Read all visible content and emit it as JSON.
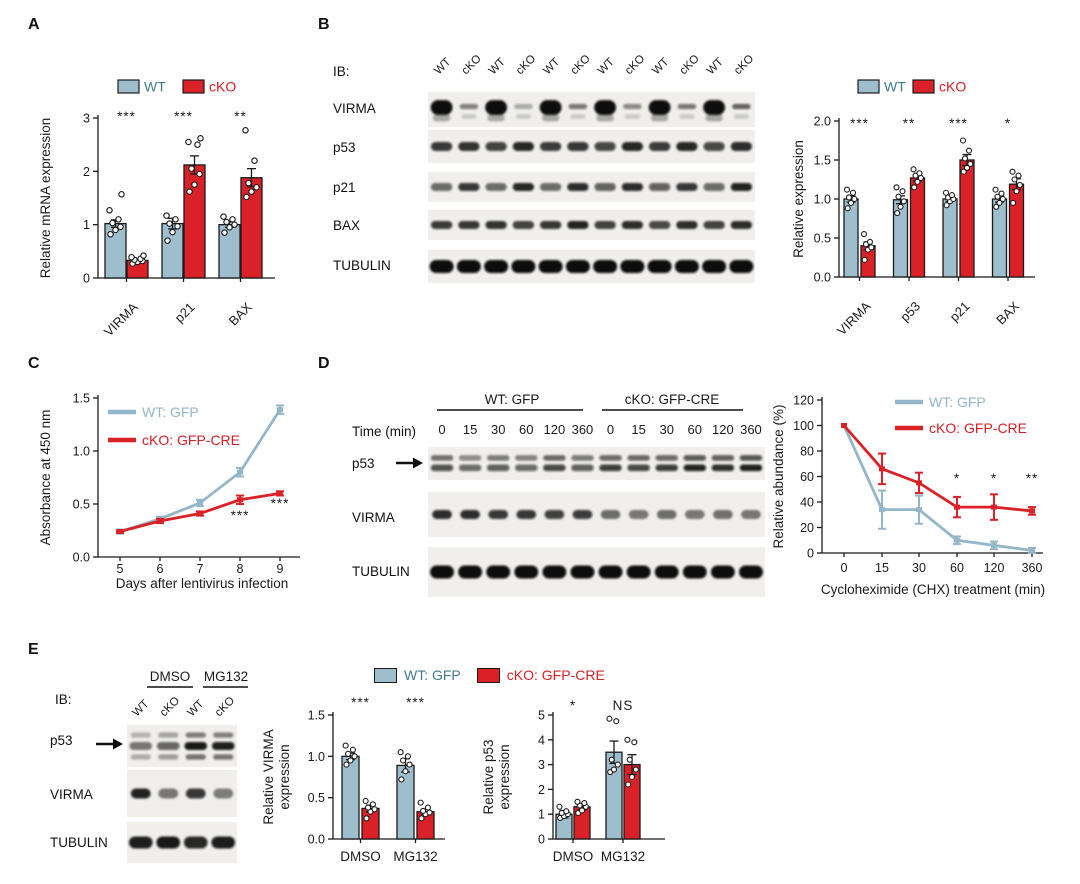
{
  "colors": {
    "wt": "#9fbecd",
    "cko": "#da2128",
    "wtText": "#41798e",
    "ckoText": "#d22027",
    "wtLine": "#93b6c8",
    "ckoLine": "#da2128",
    "ink": "#1a1a1a",
    "stripBg": "#f0efec"
  },
  "panels": {
    "a": {
      "label": "A"
    },
    "b": {
      "label": "B",
      "ib": "IB:",
      "lanes": [
        "WT",
        "cKO",
        "WT",
        "cKO",
        "WT",
        "cKO",
        "WT",
        "cKO",
        "WT",
        "cKO",
        "WT",
        "cKO"
      ],
      "rows": [
        {
          "name": "VIRMA",
          "style": "blob",
          "bands": [
            1,
            0.35,
            1,
            0.22,
            1,
            0.38,
            1,
            0.32,
            1,
            0.38,
            1,
            0.45
          ]
        },
        {
          "name": "p53",
          "style": "single",
          "bands": [
            0.8,
            0.82,
            0.75,
            0.88,
            0.78,
            0.8,
            0.72,
            0.88,
            0.78,
            0.88,
            0.72,
            0.85
          ]
        },
        {
          "name": "p21",
          "style": "single",
          "bands": [
            0.55,
            0.8,
            0.5,
            0.88,
            0.5,
            0.85,
            0.6,
            0.85,
            0.6,
            0.8,
            0.55,
            0.9
          ]
        },
        {
          "name": "BAX",
          "style": "single",
          "bands": [
            0.78,
            0.8,
            0.82,
            0.75,
            0.8,
            0.9,
            0.75,
            0.85,
            0.72,
            0.85,
            0.75,
            0.85
          ]
        },
        {
          "name": "TUBULIN",
          "style": "single",
          "bands": [
            1,
            1,
            1,
            1,
            1,
            1,
            1,
            1,
            1,
            1,
            1,
            1
          ]
        }
      ]
    },
    "c": {
      "label": "C"
    },
    "d": {
      "label": "D",
      "group_labels": [
        "WT: GFP",
        "cKO: GFP-CRE"
      ],
      "time_label": "Time (min)",
      "time_points": [
        "0",
        "15",
        "30",
        "60",
        "120",
        "360"
      ],
      "rows": [
        {
          "name": "p53",
          "style": "doublet",
          "bands": [
            0.7,
            0.55,
            0.65,
            0.6,
            0.75,
            0.65,
            0.8,
            0.75,
            0.8,
            0.9,
            0.85,
            0.92
          ]
        },
        {
          "name": "VIRMA",
          "style": "single",
          "bands": [
            0.85,
            0.85,
            0.8,
            0.8,
            0.75,
            0.78,
            0.5,
            0.45,
            0.5,
            0.45,
            0.48,
            0.45
          ]
        },
        {
          "name": "TUBULIN",
          "style": "single",
          "bands": [
            1,
            1,
            1,
            1,
            1,
            1,
            1,
            1,
            1,
            1,
            1,
            1
          ]
        }
      ]
    },
    "e": {
      "label": "E",
      "ib": "IB:",
      "treatments": [
        "DMSO",
        "MG132"
      ],
      "lanes": [
        "WT",
        "cKO",
        "WT",
        "cKO"
      ],
      "legend": [
        "WT: GFP",
        "cKO: GFP-CRE"
      ],
      "rows": [
        {
          "name": "p53",
          "style": "triplet",
          "bands": [
            0.5,
            0.62,
            0.95,
            0.92
          ]
        },
        {
          "name": "VIRMA",
          "style": "single",
          "bands": [
            0.9,
            0.45,
            0.8,
            0.42
          ]
        },
        {
          "name": "TUBULIN",
          "style": "single",
          "bands": [
            0.92,
            0.95,
            0.88,
            0.92
          ]
        }
      ]
    }
  },
  "chart_data": [
    {
      "id": "A",
      "type": "bar",
      "ylabel": "Relative mRNA expression",
      "categories": [
        "VIRMA",
        "p21",
        "BAX"
      ],
      "ylim": [
        0,
        3
      ],
      "yticks": [
        0,
        1,
        2,
        3
      ],
      "ytick_labels": [
        "0",
        "1",
        "2",
        "3"
      ],
      "legend_position": "top",
      "significance": [
        "***",
        "***",
        "**"
      ],
      "series": [
        {
          "name": "WT",
          "values": [
            1.02,
            1.02,
            1.0
          ],
          "err": [
            0.07,
            0.1,
            0.05
          ],
          "dots": [
            [
              0.82,
              0.9,
              0.96,
              1.03,
              1.1,
              1.27,
              1.57
            ],
            [
              0.7,
              0.86,
              0.97,
              1.02,
              1.1,
              1.17
            ],
            [
              0.85,
              0.95,
              1.0,
              1.05,
              1.1,
              1.15
            ]
          ]
        },
        {
          "name": "cKO",
          "values": [
            0.33,
            2.12,
            1.88
          ],
          "err": [
            0.03,
            0.17,
            0.17
          ],
          "dots": [
            [
              0.27,
              0.3,
              0.32,
              0.34,
              0.36,
              0.39,
              0.42
            ],
            [
              1.62,
              1.75,
              1.95,
              2.05,
              2.5,
              2.55,
              2.62
            ],
            [
              1.52,
              1.62,
              1.7,
              1.78,
              2.2,
              2.77
            ]
          ]
        }
      ]
    },
    {
      "id": "B",
      "type": "bar",
      "ylabel": "Relative expression",
      "categories": [
        "VIRMA",
        "p53",
        "p21",
        "BAX"
      ],
      "ylim": [
        0,
        2
      ],
      "yticks": [
        0,
        0.5,
        1.0,
        1.5,
        2.0
      ],
      "ytick_labels": [
        "0.0",
        "0.5",
        "1.0",
        "1.5",
        "2.0"
      ],
      "legend_position": "top",
      "significance": [
        "***",
        "**",
        "***",
        "*"
      ],
      "series": [
        {
          "name": "WT",
          "values": [
            1.0,
            0.99,
            1.0,
            1.0
          ],
          "err": [
            0.04,
            0.05,
            0.03,
            0.04
          ],
          "dots": [
            [
              0.88,
              0.95,
              1.0,
              1.02,
              1.08,
              1.12
            ],
            [
              0.82,
              0.9,
              0.97,
              1.03,
              1.1,
              1.15
            ],
            [
              0.92,
              0.97,
              1.0,
              1.02,
              1.05,
              1.08
            ],
            [
              0.9,
              0.95,
              1.0,
              1.03,
              1.07,
              1.12
            ]
          ]
        },
        {
          "name": "cKO",
          "values": [
            0.4,
            1.27,
            1.5,
            1.19
          ],
          "err": [
            0.05,
            0.04,
            0.07,
            0.07
          ],
          "dots": [
            [
              0.22,
              0.35,
              0.38,
              0.42,
              0.45,
              0.55
            ],
            [
              1.15,
              1.22,
              1.27,
              1.3,
              1.33,
              1.38
            ],
            [
              1.35,
              1.4,
              1.45,
              1.52,
              1.62,
              1.75
            ],
            [
              0.95,
              1.1,
              1.18,
              1.25,
              1.3,
              1.35
            ]
          ]
        }
      ]
    },
    {
      "id": "C",
      "type": "line",
      "ylabel": "Absorbance at 450 nm",
      "xlabel": "Days after lentivirus infection",
      "x": [
        5,
        6,
        7,
        8,
        9
      ],
      "xtick_labels": [
        "5",
        "6",
        "7",
        "8",
        "9"
      ],
      "ylim": [
        0,
        1.5
      ],
      "yticks": [
        0,
        0.5,
        1.0,
        1.5
      ],
      "ytick_labels": [
        "0.0",
        "0.5",
        "1.0",
        "1.5"
      ],
      "legend_position": "top-left-inside",
      "significance": [
        {
          "xi": 3,
          "label": "***"
        },
        {
          "xi": 4,
          "label": "***"
        }
      ],
      "series": [
        {
          "name": "WT: GFP",
          "values": [
            0.24,
            0.36,
            0.51,
            0.8,
            1.39
          ],
          "err": [
            0.02,
            0.02,
            0.03,
            0.04,
            0.04
          ]
        },
        {
          "name": "cKO: GFP-CRE",
          "values": [
            0.24,
            0.34,
            0.41,
            0.54,
            0.6
          ],
          "err": [
            0.01,
            0.02,
            0.02,
            0.04,
            0.02
          ]
        }
      ]
    },
    {
      "id": "D",
      "type": "line",
      "ylabel": "Relative abundance (%)",
      "xlabel": "Cycloheximide (CHX) treatment (min)",
      "x": [
        0,
        15,
        30,
        60,
        120,
        360
      ],
      "xtick_labels": [
        "0",
        "15",
        "30",
        "60",
        "120",
        "360"
      ],
      "ylim": [
        0,
        120
      ],
      "yticks": [
        0,
        20,
        40,
        60,
        80,
        100,
        120
      ],
      "ytick_labels": [
        "0",
        "20",
        "40",
        "60",
        "80",
        "100",
        "120"
      ],
      "legend_position": "top-right-inside",
      "significance": [
        {
          "xi": 3,
          "label": "*"
        },
        {
          "xi": 4,
          "label": "*"
        },
        {
          "xi": 5,
          "label": "**"
        }
      ],
      "series": [
        {
          "name": "WT: GFP",
          "values": [
            100,
            34,
            34,
            10,
            6,
            2
          ],
          "err": [
            0,
            15,
            11,
            3,
            3,
            2
          ]
        },
        {
          "name": "cKO: GFP-CRE",
          "values": [
            100,
            66,
            55,
            36,
            36,
            33
          ],
          "err": [
            0,
            12,
            8,
            8,
            10,
            3
          ]
        }
      ]
    },
    {
      "id": "E1",
      "type": "bar",
      "ylabel_lines": [
        "Relative VIRMA",
        "expression"
      ],
      "categories": [
        "DMSO",
        "MG132"
      ],
      "ylim": [
        0,
        1.5
      ],
      "yticks": [
        0,
        0.5,
        1.0,
        1.5
      ],
      "ytick_labels": [
        "0.0",
        "0.5",
        "1.0",
        "1.5"
      ],
      "significance": [
        "***",
        "***"
      ],
      "series": [
        {
          "name": "WT: GFP",
          "values": [
            1.0,
            0.89
          ],
          "err": [
            0.04,
            0.08
          ],
          "dots": [
            [
              0.9,
              0.95,
              1.0,
              1.03,
              1.08,
              1.13
            ],
            [
              0.72,
              0.82,
              0.9,
              0.95,
              1.0,
              1.05
            ]
          ]
        },
        {
          "name": "cKO: GFP-CRE",
          "values": [
            0.37,
            0.33
          ],
          "err": [
            0.04,
            0.03
          ],
          "dots": [
            [
              0.25,
              0.33,
              0.36,
              0.38,
              0.42,
              0.46
            ],
            [
              0.25,
              0.3,
              0.32,
              0.34,
              0.38,
              0.44
            ]
          ]
        }
      ]
    },
    {
      "id": "E2",
      "type": "bar",
      "ylabel_lines": [
        "Relative p53",
        "expression"
      ],
      "categories": [
        "DMSO",
        "MG132"
      ],
      "ylim": [
        0,
        5
      ],
      "yticks": [
        0,
        1,
        2,
        3,
        4,
        5
      ],
      "ytick_labels": [
        "0",
        "1",
        "2",
        "3",
        "4",
        "5"
      ],
      "significance": [
        "*",
        "NS"
      ],
      "series": [
        {
          "name": "WT: GFP",
          "values": [
            1.0,
            3.5
          ],
          "err": [
            0.15,
            0.45
          ],
          "dots": [
            [
              0.85,
              0.92,
              1.0,
              1.05,
              1.12,
              1.3
            ],
            [
              2.7,
              2.8,
              3.0,
              3.2,
              4.75,
              4.85
            ]
          ]
        },
        {
          "name": "cKO: GFP-CRE",
          "values": [
            1.3,
            3.0
          ],
          "err": [
            0.12,
            0.4
          ],
          "dots": [
            [
              1.05,
              1.15,
              1.3,
              1.35,
              1.45,
              1.5
            ],
            [
              2.2,
              2.5,
              2.8,
              3.2,
              3.9,
              4.0
            ]
          ]
        }
      ]
    }
  ]
}
